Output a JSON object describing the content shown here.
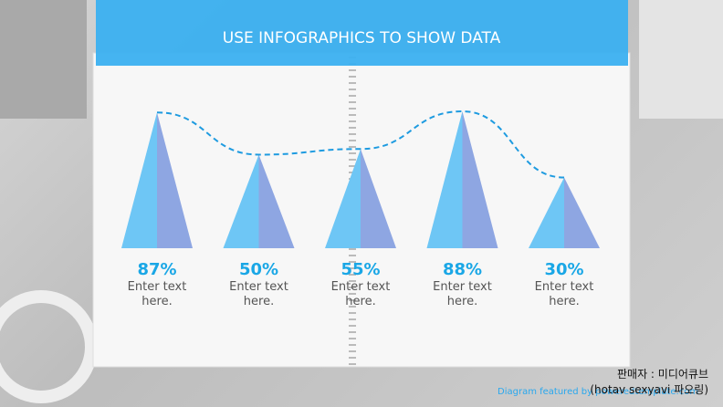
{
  "chart_data": {
    "type": "pyramid",
    "title": "USE INFOGRAPHICS TO SHOW DATA",
    "categories": [
      "Enter text here.",
      "Enter text here.",
      "Enter text here.",
      "Enter text here.",
      "Enter text here."
    ],
    "values": [
      87,
      50,
      55,
      88,
      30
    ],
    "value_labels": [
      "87%",
      "50%",
      "55%",
      "88%",
      "30%"
    ],
    "colors": [
      "#6ec6f5",
      "#8ea6e2"
    ],
    "line_color": "#1e9be0"
  },
  "footer": "Diagram featured by poweredtemplate.com",
  "watermark": [
    "판매자 : 미디어큐브",
    "(hotav sexyavi 파오링)"
  ]
}
